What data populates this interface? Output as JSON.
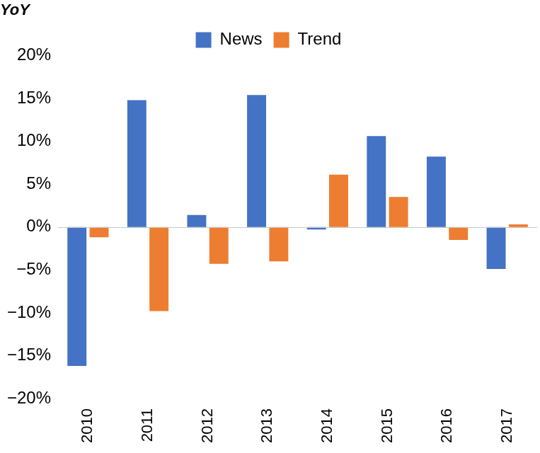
{
  "chart_data": {
    "type": "bar",
    "ylabel": "YoY",
    "categories": [
      "2010",
      "2011",
      "2012",
      "2013",
      "2014",
      "2015",
      "2016",
      "2017"
    ],
    "series": [
      {
        "name": "News",
        "color": "#4472c4",
        "values": [
          -16.2,
          14.8,
          1.4,
          15.4,
          -0.3,
          10.6,
          8.2,
          -4.9
        ]
      },
      {
        "name": "Trend",
        "color": "#ed7d31",
        "values": [
          -1.2,
          -9.8,
          -4.3,
          -4.0,
          6.1,
          3.5,
          -1.5,
          0.3
        ]
      }
    ],
    "ylim": [
      -20,
      20
    ],
    "yticks": [
      {
        "value": -20,
        "label": "−20%"
      },
      {
        "value": -15,
        "label": "−15%"
      },
      {
        "value": -10,
        "label": "−10%"
      },
      {
        "value": -5,
        "label": "−5%"
      },
      {
        "value": 0,
        "label": "0%"
      },
      {
        "value": 5,
        "label": "5%"
      },
      {
        "value": 10,
        "label": "10%"
      },
      {
        "value": 15,
        "label": "15%"
      },
      {
        "value": 20,
        "label": "20%"
      }
    ],
    "grid": false,
    "legend": "top"
  }
}
